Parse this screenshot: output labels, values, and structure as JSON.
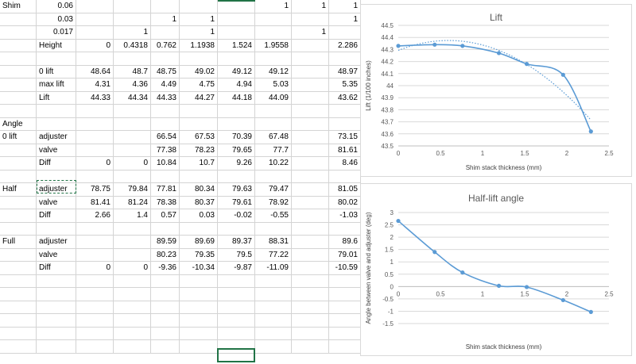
{
  "spreadsheet": {
    "rows": [
      [
        "Shim",
        "0.06",
        "",
        "",
        "",
        "",
        "",
        "1",
        "1",
        "1"
      ],
      [
        "",
        "0.03",
        "",
        "",
        "1",
        "1",
        "",
        "",
        "",
        "1"
      ],
      [
        "",
        "0.017",
        "",
        "1",
        "",
        "1",
        "",
        "",
        "1",
        ""
      ],
      [
        "",
        "Height",
        "0",
        "0.4318",
        "0.762",
        "1.1938",
        "1.524",
        "1.9558",
        "",
        "2.286"
      ],
      [
        "",
        "",
        "",
        "",
        "",
        "",
        "",
        "",
        "",
        ""
      ],
      [
        "",
        "0 lift",
        "48.64",
        "48.7",
        "48.75",
        "49.02",
        "49.12",
        "49.12",
        "",
        "48.97"
      ],
      [
        "",
        "max lift",
        "4.31",
        "4.36",
        "4.49",
        "4.75",
        "4.94",
        "5.03",
        "",
        "5.35"
      ],
      [
        "",
        "Lift",
        "44.33",
        "44.34",
        "44.33",
        "44.27",
        "44.18",
        "44.09",
        "",
        "43.62"
      ],
      [
        "",
        "",
        "",
        "",
        "",
        "",
        "",
        "",
        "",
        ""
      ],
      [
        "Angle",
        "",
        "",
        "",
        "",
        "",
        "",
        "",
        "",
        ""
      ],
      [
        "0 lift",
        "adjuster",
        "",
        "",
        "66.54",
        "67.53",
        "70.39",
        "67.48",
        "",
        "73.15"
      ],
      [
        "",
        "valve",
        "",
        "",
        "77.38",
        "78.23",
        "79.65",
        "77.7",
        "",
        "81.61"
      ],
      [
        "",
        "Diff",
        "0",
        "0",
        "10.84",
        "10.7",
        "9.26",
        "10.22",
        "",
        "8.46"
      ],
      [
        "",
        "",
        "",
        "",
        "",
        "",
        "",
        "",
        "",
        ""
      ],
      [
        "Half",
        "adjuster",
        "78.75",
        "79.84",
        "77.81",
        "80.34",
        "79.63",
        "79.47",
        "",
        "81.05"
      ],
      [
        "",
        "valve",
        "81.41",
        "81.24",
        "78.38",
        "80.37",
        "79.61",
        "78.92",
        "",
        "80.02"
      ],
      [
        "",
        "Diff",
        "2.66",
        "1.4",
        "0.57",
        "0.03",
        "-0.02",
        "-0.55",
        "",
        "-1.03"
      ],
      [
        "",
        "",
        "",
        "",
        "",
        "",
        "",
        "",
        "",
        ""
      ],
      [
        "Full",
        "adjuster",
        "",
        "",
        "89.59",
        "89.69",
        "89.37",
        "88.31",
        "",
        "89.6"
      ],
      [
        "",
        "valve",
        "",
        "",
        "80.23",
        "79.35",
        "79.5",
        "77.22",
        "",
        "79.01"
      ],
      [
        "",
        "Diff",
        "0",
        "0",
        "-9.36",
        "-10.34",
        "-9.87",
        "-11.09",
        "",
        "-10.59"
      ]
    ]
  },
  "chart_data": [
    {
      "type": "line",
      "title": "Lift",
      "xlabel": "Shim stack thickness (mm)",
      "ylabel": "Lift (1/100 inches)",
      "x": [
        0,
        0.4318,
        0.762,
        1.1938,
        1.524,
        1.9558,
        2.286
      ],
      "y": [
        44.33,
        44.34,
        44.33,
        44.27,
        44.18,
        44.09,
        43.62
      ],
      "trendline": "polynomial",
      "xlim": [
        0,
        2.5
      ],
      "ylim": [
        43.5,
        44.5
      ],
      "xticks": [
        "0",
        "0.5",
        "1",
        "1.5",
        "2",
        "2.5"
      ],
      "yticks": [
        "43.5",
        "43.6",
        "43.7",
        "43.8",
        "43.9",
        "44",
        "44.1",
        "44.2",
        "44.3",
        "44.4",
        "44.5"
      ],
      "grid": true,
      "color": "#5b9bd5"
    },
    {
      "type": "line",
      "title": "Half-lift angle",
      "xlabel": "Shim stack thickness (mm)",
      "ylabel": "Angle between valve and adjuster (deg)",
      "x": [
        0,
        0.4318,
        0.762,
        1.1938,
        1.524,
        1.9558,
        2.286
      ],
      "y": [
        2.66,
        1.4,
        0.57,
        0.03,
        -0.02,
        -0.55,
        -1.03
      ],
      "xlim": [
        0,
        2.5
      ],
      "ylim": [
        -1.5,
        3
      ],
      "xticks": [
        "0",
        "0.5",
        "1",
        "1.5",
        "2",
        "2.5"
      ],
      "yticks": [
        "-1.5",
        "-1",
        "-0.5",
        "0",
        "0.5",
        "1",
        "1.5",
        "2",
        "2.5",
        "3"
      ],
      "grid": true,
      "color": "#5b9bd5"
    }
  ]
}
